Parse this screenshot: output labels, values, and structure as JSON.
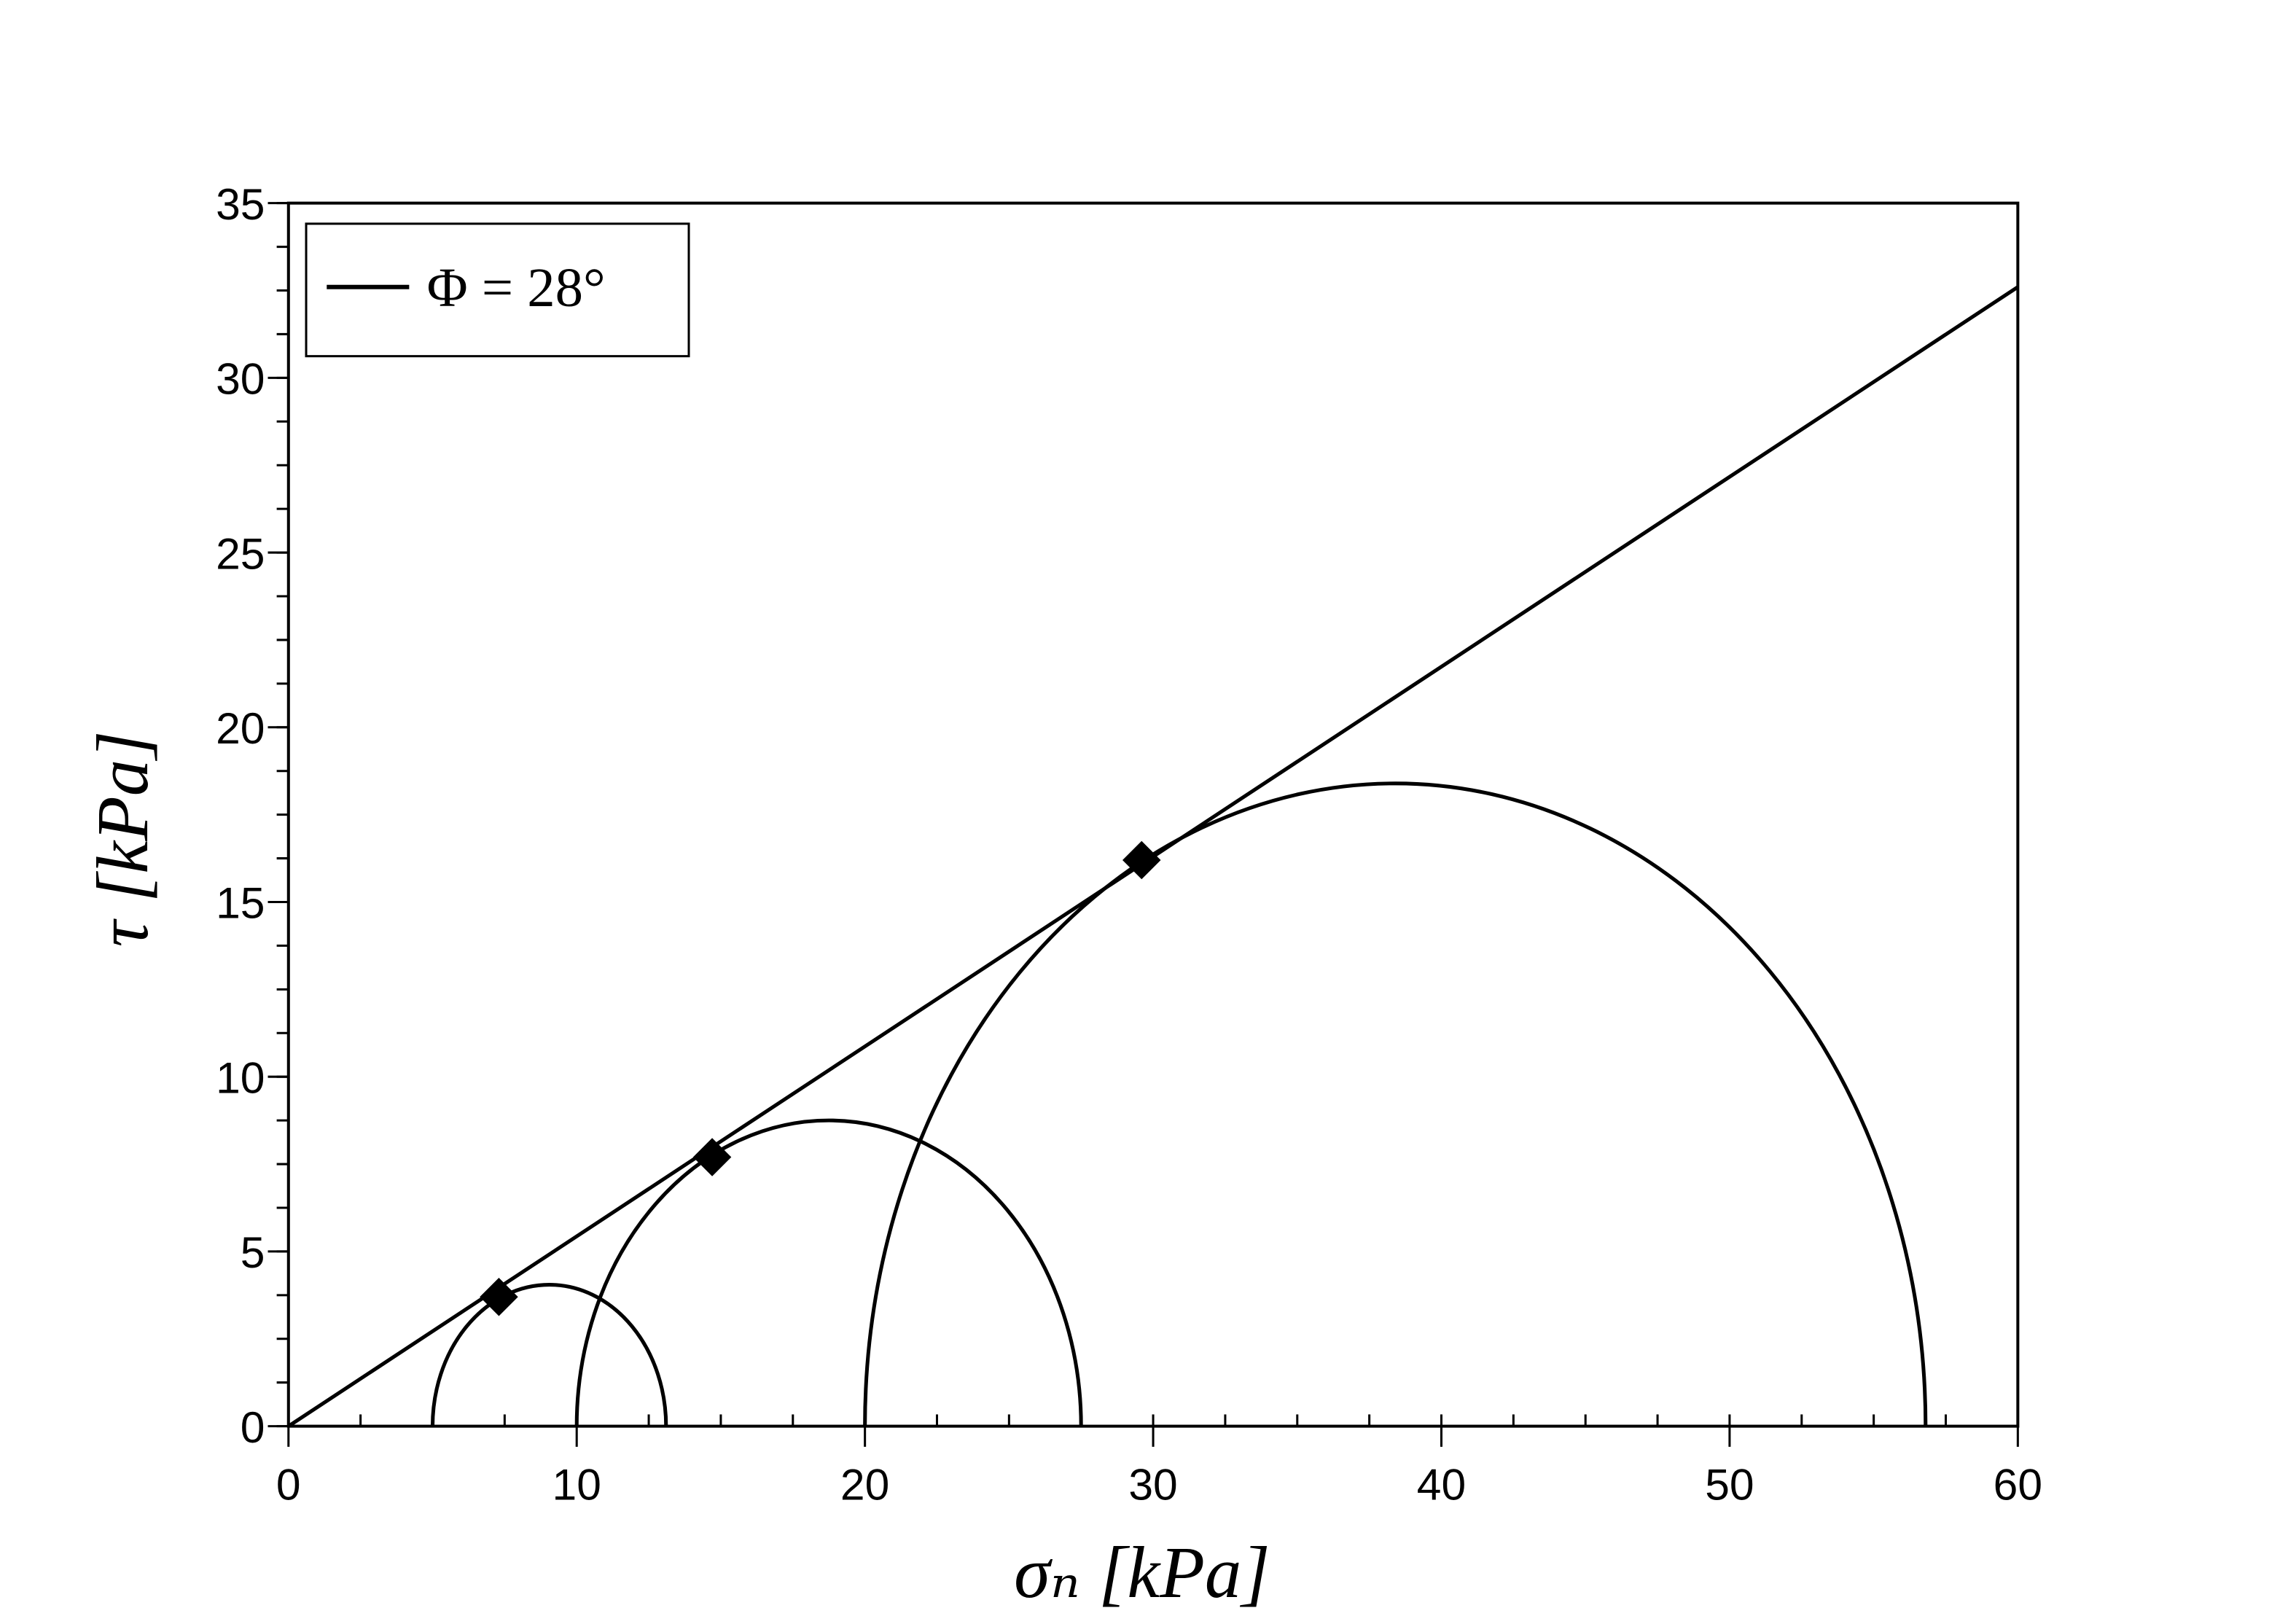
{
  "chart_data": {
    "type": "mohr",
    "xlabel": "σₙ [kPa]",
    "ylabel": "τ [kPa]",
    "xlim": [
      0,
      60
    ],
    "ylim": [
      0,
      35
    ],
    "xticks": [
      0,
      10,
      20,
      30,
      40,
      50,
      60
    ],
    "yticks": [
      0,
      5,
      10,
      15,
      20,
      25,
      30,
      35
    ],
    "xminor": 2.5,
    "yminor": 1.25,
    "legend": "upper-left",
    "series": [
      {
        "name": "Φ = 28°",
        "color": "#000000",
        "x": [
          0,
          60
        ],
        "values": [
          0,
          32.6
        ]
      }
    ],
    "circles": [
      {
        "sigma3": 5,
        "sigma1": 13.1
      },
      {
        "sigma3": 10,
        "sigma1": 27.5
      },
      {
        "sigma3": 20,
        "sigma1": 56.8
      }
    ],
    "points": {
      "x": [
        7.3,
        14.7,
        29.6
      ],
      "values": [
        3.7,
        7.7,
        16.2
      ]
    }
  }
}
